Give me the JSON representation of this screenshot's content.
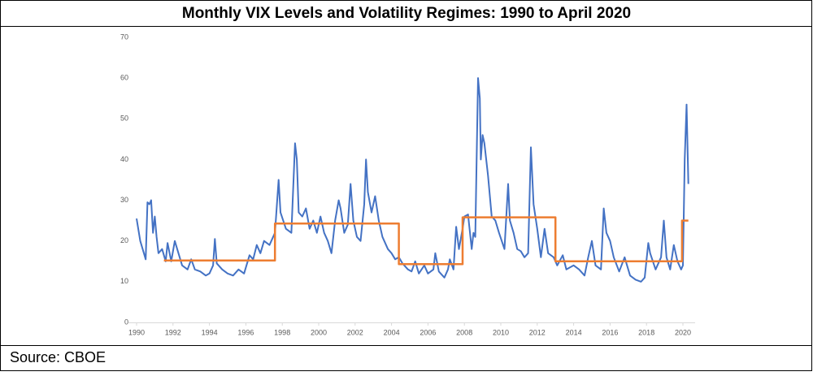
{
  "chart_data": {
    "type": "line",
    "title": "Monthly VIX Levels and Volatility Regimes: 1990 to April 2020",
    "source": "Source: CBOE",
    "xlim": [
      1990,
      2020.4
    ],
    "xticks": [
      1990,
      1992,
      1994,
      1996,
      1998,
      2000,
      2002,
      2004,
      2006,
      2008,
      2010,
      2012,
      2014,
      2016,
      2018,
      2020
    ],
    "ylim": [
      0,
      70
    ],
    "yticks": [
      0,
      10,
      20,
      30,
      40,
      50,
      60,
      70
    ],
    "grid": false,
    "series": [
      {
        "color": "#4472c4",
        "x": [
          1990.0,
          1990.2,
          1990.4,
          1990.5,
          1990.6,
          1990.7,
          1990.8,
          1990.9,
          1991.0,
          1991.1,
          1991.2,
          1991.4,
          1991.6,
          1991.7,
          1991.9,
          1992.1,
          1992.3,
          1992.5,
          1992.8,
          1993.0,
          1993.2,
          1993.5,
          1993.8,
          1994.0,
          1994.2,
          1994.3,
          1994.4,
          1994.7,
          1995.0,
          1995.3,
          1995.6,
          1995.9,
          1996.2,
          1996.4,
          1996.6,
          1996.8,
          1997.0,
          1997.3,
          1997.6,
          1997.8,
          1997.9,
          1998.2,
          1998.5,
          1998.7,
          1998.8,
          1998.9,
          1999.1,
          1999.3,
          1999.5,
          1999.7,
          1999.9,
          2000.1,
          2000.3,
          2000.5,
          2000.7,
          2000.9,
          2001.1,
          2001.2,
          2001.4,
          2001.6,
          2001.75,
          2001.9,
          2002.1,
          2002.3,
          2002.5,
          2002.6,
          2002.7,
          2002.9,
          2003.1,
          2003.3,
          2003.5,
          2003.8,
          2004.0,
          2004.2,
          2004.4,
          2004.6,
          2004.9,
          2005.1,
          2005.3,
          2005.5,
          2005.8,
          2006.0,
          2006.3,
          2006.4,
          2006.6,
          2006.9,
          2007.1,
          2007.2,
          2007.4,
          2007.55,
          2007.7,
          2007.9,
          2008.0,
          2008.2,
          2008.4,
          2008.5,
          2008.6,
          2008.75,
          2008.85,
          2008.9,
          2009.0,
          2009.1,
          2009.3,
          2009.5,
          2009.7,
          2009.9,
          2010.2,
          2010.4,
          2010.5,
          2010.7,
          2010.9,
          2011.1,
          2011.3,
          2011.5,
          2011.65,
          2011.8,
          2012.0,
          2012.2,
          2012.4,
          2012.6,
          2012.9,
          2013.1,
          2013.4,
          2013.6,
          2014.0,
          2014.3,
          2014.6,
          2014.8,
          2015.0,
          2015.2,
          2015.5,
          2015.65,
          2015.8,
          2016.0,
          2016.2,
          2016.5,
          2016.8,
          2017.1,
          2017.4,
          2017.7,
          2017.9,
          2018.1,
          2018.2,
          2018.5,
          2018.8,
          2018.95,
          2019.1,
          2019.3,
          2019.5,
          2019.7,
          2019.9,
          2020.0,
          2020.1,
          2020.2,
          2020.3
        ],
        "values": [
          25.5,
          20,
          17,
          15.5,
          29.5,
          29,
          30,
          22,
          26,
          21,
          17,
          18,
          15,
          19.5,
          15,
          20,
          17,
          14,
          13,
          15.5,
          13,
          12.5,
          11.5,
          12,
          14,
          20.5,
          14.5,
          13,
          12,
          11.5,
          13,
          12,
          16.5,
          15.5,
          19,
          17,
          20,
          19,
          22,
          35,
          27,
          23,
          22,
          44,
          40,
          27,
          26,
          28,
          23,
          25,
          22,
          26,
          22,
          20,
          17,
          25,
          30,
          28,
          22,
          24,
          34,
          25,
          21,
          20,
          29,
          40,
          32,
          27,
          31,
          25,
          21,
          18,
          17,
          15.5,
          16,
          14.5,
          13,
          12.5,
          15,
          12,
          14,
          12,
          13,
          17,
          12.5,
          11,
          13,
          15.5,
          13,
          23.5,
          18,
          23,
          26,
          26.5,
          18,
          22,
          21,
          60,
          55,
          40,
          46,
          44,
          36,
          26,
          25,
          22,
          18,
          34,
          25,
          22,
          18,
          17.5,
          16,
          17,
          43,
          29,
          23,
          16,
          23,
          17,
          16,
          14,
          16.5,
          13,
          14,
          13,
          11.5,
          16,
          20,
          14,
          13,
          28,
          22,
          20,
          16,
          12.5,
          16,
          11.5,
          10.5,
          10,
          11,
          19.5,
          17,
          13,
          16,
          25,
          16,
          13,
          19,
          15,
          13,
          14,
          40,
          53.5,
          34
        ]
      },
      {
        "color": "#ed7d31",
        "x": [
          1991.5,
          1997.6,
          1997.6,
          2004.4,
          2004.4,
          2007.9,
          2007.9,
          2013.0,
          2013.0,
          2019.95,
          2019.95,
          2020.3
        ],
        "values": [
          15.2,
          15.2,
          24.3,
          24.3,
          14.3,
          14.3,
          25.8,
          25.8,
          15.0,
          15.0,
          25.0,
          25.0
        ]
      }
    ]
  }
}
